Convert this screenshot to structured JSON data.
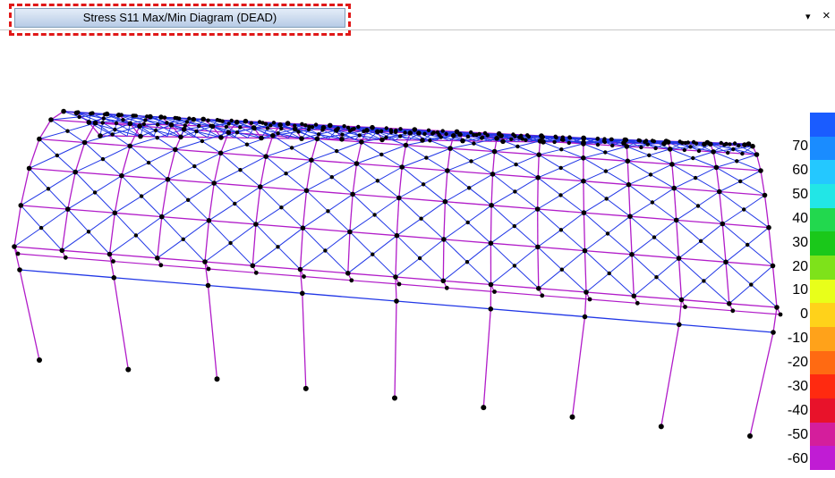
{
  "window": {
    "tab_title": "Stress S11 Max/Min Diagram (DEAD)",
    "dropdown_glyph": "▾",
    "close_glyph": "×"
  },
  "colors": {
    "highlight": "#e01818",
    "member_primary": "#b11cc9",
    "member_secondary": "#2036e6",
    "node": "#000000"
  },
  "legend": {
    "labels": [
      "70",
      "60",
      "50",
      "40",
      "30",
      "20",
      "10",
      "0",
      "-10",
      "-20",
      "-30",
      "-40",
      "-50",
      "-60"
    ],
    "swatch_colors": [
      "#1a5cff",
      "#1a8cff",
      "#24c8ff",
      "#22e6e6",
      "#22d84e",
      "#1ac81a",
      "#7ee21a",
      "#e8ff1a",
      "#ffd21a",
      "#ffa21a",
      "#ff6a12",
      "#ff2a10",
      "#e8122a",
      "#d41e9c",
      "#c01cd4"
    ]
  }
}
